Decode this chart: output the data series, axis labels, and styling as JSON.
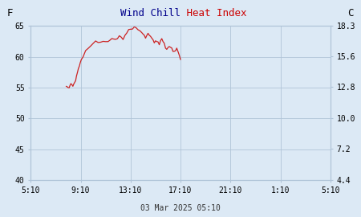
{
  "title_windchill": "Wind Chill",
  "title_heatindex": " Heat Index",
  "title_windchill_color": "#00008B",
  "title_heatindex_color": "#CC0000",
  "label_left": "F",
  "label_right": "C",
  "xlabel": "03 Mar 2025 05:10",
  "ylim_left": [
    40,
    65
  ],
  "ylim_right": [
    4.4,
    18.3
  ],
  "yticks_left": [
    40,
    45,
    50,
    55,
    60,
    65
  ],
  "yticks_right": [
    4.4,
    7.2,
    10.0,
    12.8,
    15.6,
    18.3
  ],
  "xtick_labels": [
    "5:10",
    "9:10",
    "13:10",
    "17:10",
    "21:10",
    "1:10",
    "5:10"
  ],
  "background_color": "#dce9f5",
  "header_color": "#d4d4d4",
  "line_color": "#CC2222",
  "grid_color": "#b0c4d8",
  "data_x": [
    2.85,
    2.92,
    3.0,
    3.08,
    3.15,
    3.22,
    3.3,
    3.38,
    3.45,
    3.52,
    3.6,
    3.67,
    3.75,
    3.82,
    3.9,
    3.97,
    4.05,
    4.2,
    4.4,
    4.6,
    4.8,
    5.0,
    5.2,
    5.4,
    5.6,
    5.8,
    6.0,
    6.2,
    6.35,
    6.5,
    6.65,
    6.8,
    6.95,
    7.1,
    7.25,
    7.4,
    7.55,
    7.7,
    7.85,
    8.0,
    8.15,
    8.3,
    8.45,
    8.6,
    8.75,
    8.9,
    9.0,
    9.1,
    9.2,
    9.3,
    9.4,
    9.5,
    9.6,
    9.7,
    9.8,
    9.9,
    10.0,
    10.1,
    10.2,
    10.3,
    10.4,
    10.5,
    10.6,
    10.7,
    10.8,
    10.9,
    11.0,
    11.1,
    11.2,
    11.3,
    11.4,
    11.5,
    11.6,
    11.7,
    11.8,
    11.9,
    12.0
  ],
  "data_y": [
    55.0,
    55.1,
    55.0,
    55.2,
    55.4,
    55.7,
    55.5,
    55.3,
    55.6,
    55.9,
    56.3,
    56.8,
    57.4,
    57.9,
    58.5,
    59.1,
    59.6,
    60.2,
    60.9,
    61.5,
    61.9,
    62.2,
    62.4,
    62.3,
    62.5,
    62.6,
    62.4,
    62.5,
    62.8,
    63.0,
    62.8,
    62.6,
    63.1,
    63.5,
    63.3,
    63.1,
    63.6,
    64.0,
    64.3,
    64.5,
    64.7,
    64.8,
    64.75,
    64.6,
    64.3,
    64.0,
    63.8,
    63.5,
    63.3,
    63.5,
    63.7,
    63.4,
    63.2,
    62.9,
    62.6,
    62.4,
    62.5,
    62.7,
    62.5,
    62.2,
    62.5,
    62.8,
    62.5,
    62.0,
    61.5,
    61.2,
    61.5,
    61.8,
    61.5,
    61.2,
    61.0,
    60.8,
    61.0,
    61.2,
    60.8,
    60.2,
    59.5
  ]
}
